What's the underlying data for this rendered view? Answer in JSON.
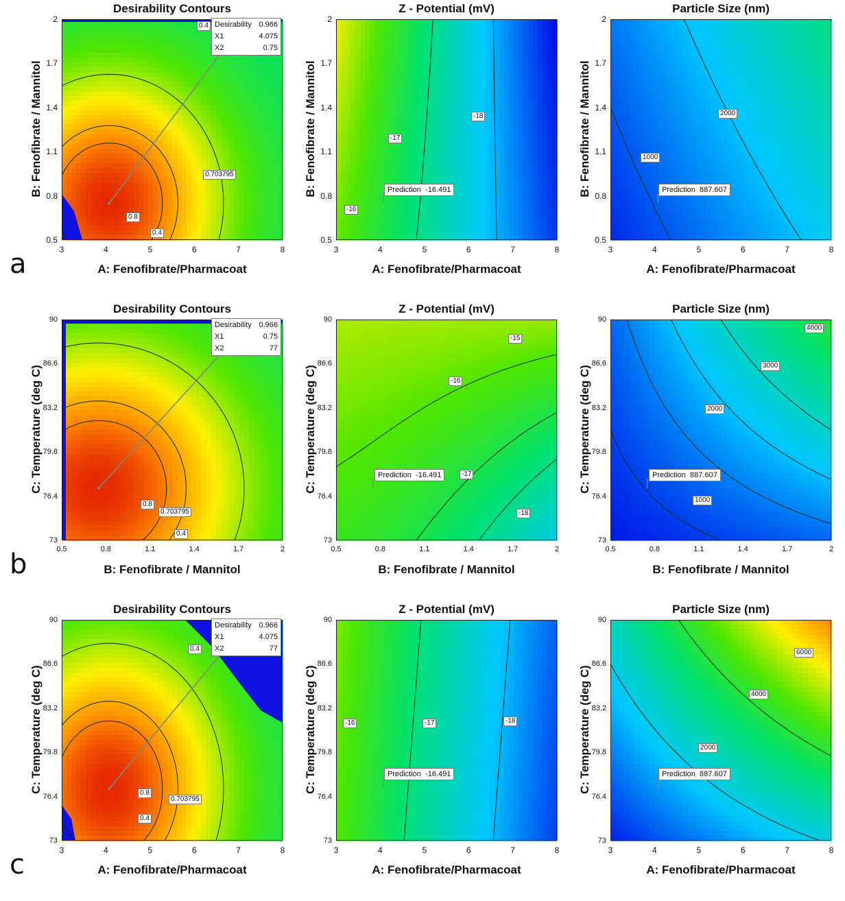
{
  "row_labels": [
    "a",
    "b",
    "c"
  ],
  "colors": {
    "contour_line": "#0b2a1a",
    "infeasible": "#1010e0",
    "pointer": "#7f8a7a"
  },
  "chart_data": [
    {
      "id": "a1",
      "row": 0,
      "col": 0,
      "type": "heatmap",
      "kind": "desirability",
      "title": "Desirability Contours",
      "xlabel": "A: Fenofibrate/Pharmacoat",
      "ylabel": "B: Fenofibrate / Mannitol",
      "xlim": [
        3,
        8
      ],
      "ylim": [
        0.5,
        2
      ],
      "xticks": [
        "3",
        "4",
        "5",
        "6",
        "7",
        "8"
      ],
      "yticks": [
        "0.5",
        "0.8",
        "1.1",
        "1.4",
        "1.7",
        "2"
      ],
      "contour_labels": [
        "0.4",
        "0.703795",
        "0.8",
        "0.4"
      ],
      "point": [
        4.075,
        0.75
      ],
      "info": {
        "desirability": "0.966",
        "x1": "4.075",
        "x2": "0.75",
        "desirability_label": "Desirability",
        "x1_label": "X1",
        "x2_label": "X2"
      }
    },
    {
      "id": "a2",
      "row": 0,
      "col": 1,
      "type": "heatmap",
      "kind": "zeta",
      "title": "Z - Potential (mV)",
      "xlabel": "A: Fenofibrate/Pharmacoat",
      "ylabel": "B: Fenofibrate / Mannitol",
      "xlim": [
        3,
        8
      ],
      "ylim": [
        0.5,
        2
      ],
      "xticks": [
        "3",
        "4",
        "5",
        "6",
        "7",
        "8"
      ],
      "yticks": [
        "0.5",
        "0.8",
        "1.1",
        "1.4",
        "1.7",
        "2"
      ],
      "contour_labels": [
        "-16",
        "-17",
        "-18"
      ],
      "point": [
        4.075,
        0.75
      ],
      "prediction_label": "Prediction",
      "prediction": "-16.491"
    },
    {
      "id": "a3",
      "row": 0,
      "col": 2,
      "type": "heatmap",
      "kind": "size",
      "title": "Particle Size (nm)",
      "xlabel": "A: Fenofibrate/Pharmacoat",
      "ylabel": "B: Fenofibrate / Mannitol",
      "xlim": [
        3,
        8
      ],
      "ylim": [
        0.5,
        2
      ],
      "xticks": [
        "3",
        "4",
        "5",
        "6",
        "7",
        "8"
      ],
      "yticks": [
        "0.5",
        "0.8",
        "1.1",
        "1.4",
        "1.7",
        "2"
      ],
      "contour_labels": [
        "1000",
        "2000"
      ],
      "point": [
        4.075,
        0.75
      ],
      "prediction_label": "Prediction",
      "prediction": "887.607"
    },
    {
      "id": "b1",
      "row": 1,
      "col": 0,
      "type": "heatmap",
      "kind": "desirability",
      "title": "Desirability Contours",
      "xlabel": "B: Fenofibrate / Mannitol",
      "ylabel": "C: Temperature (deg C)",
      "xlim": [
        0.5,
        2
      ],
      "ylim": [
        73,
        90
      ],
      "xticks": [
        "0.5",
        "0.8",
        "1.1",
        "1.4",
        "1.7",
        "2"
      ],
      "yticks": [
        "73",
        "76.4",
        "79.8",
        "83.2",
        "86.6",
        "90"
      ],
      "contour_labels": [
        "0.8",
        "0.703795",
        "0.4"
      ],
      "point": [
        0.75,
        77
      ],
      "info": {
        "desirability": "0.966",
        "x1": "0.75",
        "x2": "77",
        "desirability_label": "Desirability",
        "x1_label": "X1",
        "x2_label": "X2"
      }
    },
    {
      "id": "b2",
      "row": 1,
      "col": 1,
      "type": "heatmap",
      "kind": "zeta",
      "title": "Z - Potential (mV)",
      "xlabel": "B: Fenofibrate / Mannitol",
      "ylabel": "C: Temperature (deg C)",
      "xlim": [
        0.5,
        2
      ],
      "ylim": [
        73,
        90
      ],
      "xticks": [
        "0.5",
        "0.8",
        "1.1",
        "1.4",
        "1.7",
        "2"
      ],
      "yticks": [
        "73",
        "76.4",
        "79.8",
        "83.2",
        "86.6",
        "90"
      ],
      "contour_labels": [
        "-15",
        "-16",
        "-17",
        "-18"
      ],
      "point": [
        0.75,
        77
      ],
      "prediction_label": "Prediction",
      "prediction": "-16.491"
    },
    {
      "id": "b3",
      "row": 1,
      "col": 2,
      "type": "heatmap",
      "kind": "size",
      "title": "Particle Size (nm)",
      "xlabel": "B: Fenofibrate / Mannitol",
      "ylabel": "C: Temperature (deg C)",
      "xlim": [
        0.5,
        2
      ],
      "ylim": [
        73,
        90
      ],
      "xticks": [
        "0.5",
        "0.8",
        "1.1",
        "1.4",
        "1.7",
        "2"
      ],
      "yticks": [
        "73",
        "76.4",
        "79.8",
        "83.2",
        "86.6",
        "90"
      ],
      "contour_labels": [
        "4000",
        "3000",
        "2000",
        "1000"
      ],
      "point": [
        0.75,
        77
      ],
      "prediction_label": "Prediction",
      "prediction": "887.607"
    },
    {
      "id": "c1",
      "row": 2,
      "col": 0,
      "type": "heatmap",
      "kind": "desirability",
      "title": "Desirability Contours",
      "xlabel": "A: Fenofibrate/Pharmacoat",
      "ylabel": "C: Temperature (deg C)",
      "xlim": [
        3,
        8
      ],
      "ylim": [
        73,
        90
      ],
      "xticks": [
        "3",
        "4",
        "5",
        "6",
        "7",
        "8"
      ],
      "yticks": [
        "73",
        "76.4",
        "79.8",
        "83.2",
        "86.6",
        "90"
      ],
      "contour_labels": [
        "0.4",
        "0.8",
        "0.703795",
        "0.4"
      ],
      "point": [
        4.075,
        77
      ],
      "info": {
        "desirability": "0.966",
        "x1": "4.075",
        "x2": "77",
        "desirability_label": "Desirability",
        "x1_label": "X1",
        "x2_label": "X2"
      }
    },
    {
      "id": "c2",
      "row": 2,
      "col": 1,
      "type": "heatmap",
      "kind": "zeta",
      "title": "Z - Potential (mV)",
      "xlabel": "A: Fenofibrate/Pharmacoat",
      "ylabel": "C: Temperature (deg C)",
      "xlim": [
        3,
        8
      ],
      "ylim": [
        73,
        90
      ],
      "xticks": [
        "3",
        "4",
        "5",
        "6",
        "7",
        "8"
      ],
      "yticks": [
        "73",
        "76.4",
        "79.8",
        "83.2",
        "86.6",
        "90"
      ],
      "contour_labels": [
        "-16",
        "-17",
        "-18"
      ],
      "point": [
        4.075,
        77
      ],
      "prediction_label": "Prediction",
      "prediction": "-16.491"
    },
    {
      "id": "c3",
      "row": 2,
      "col": 2,
      "type": "heatmap",
      "kind": "size",
      "title": "Particle Size (nm)",
      "xlabel": "A: Fenofibrate/Pharmacoat",
      "ylabel": "C: Temperature (deg C)",
      "xlim": [
        3,
        8
      ],
      "ylim": [
        73,
        90
      ],
      "xticks": [
        "3",
        "4",
        "5",
        "6",
        "7",
        "8"
      ],
      "yticks": [
        "73",
        "76.4",
        "79.8",
        "83.2",
        "86.6",
        "90"
      ],
      "contour_labels": [
        "6000",
        "4000",
        "2000"
      ],
      "point": [
        4.075,
        77
      ],
      "prediction_label": "Prediction",
      "prediction": "887.607"
    }
  ]
}
